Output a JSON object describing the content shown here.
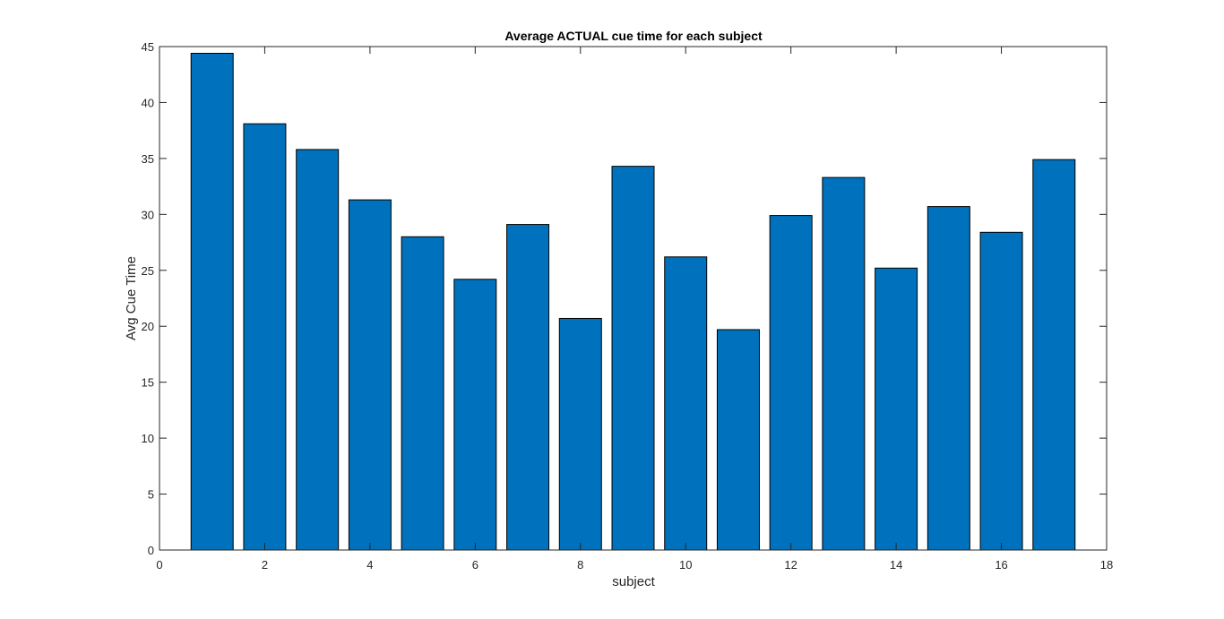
{
  "chart_data": {
    "type": "bar",
    "title": "Average ACTUAL cue time for each subject",
    "xlabel": "subject",
    "ylabel": "Avg Cue Time",
    "categories": [
      1,
      2,
      3,
      4,
      5,
      6,
      7,
      8,
      9,
      10,
      11,
      12,
      13,
      14,
      15,
      16,
      17
    ],
    "values": [
      44.4,
      38.1,
      35.8,
      31.3,
      28.0,
      24.2,
      29.1,
      20.7,
      34.3,
      26.2,
      19.7,
      29.9,
      33.3,
      25.2,
      30.7,
      28.4,
      34.9
    ],
    "xlim": [
      0,
      18
    ],
    "ylim": [
      0,
      45
    ],
    "xticks": [
      0,
      2,
      4,
      6,
      8,
      10,
      12,
      14,
      16,
      18
    ],
    "yticks": [
      0,
      5,
      10,
      15,
      20,
      25,
      30,
      35,
      40,
      45
    ],
    "bar_color": "#0072BD",
    "bar_edge_color": "#000000",
    "grid": false,
    "legend": "none"
  }
}
